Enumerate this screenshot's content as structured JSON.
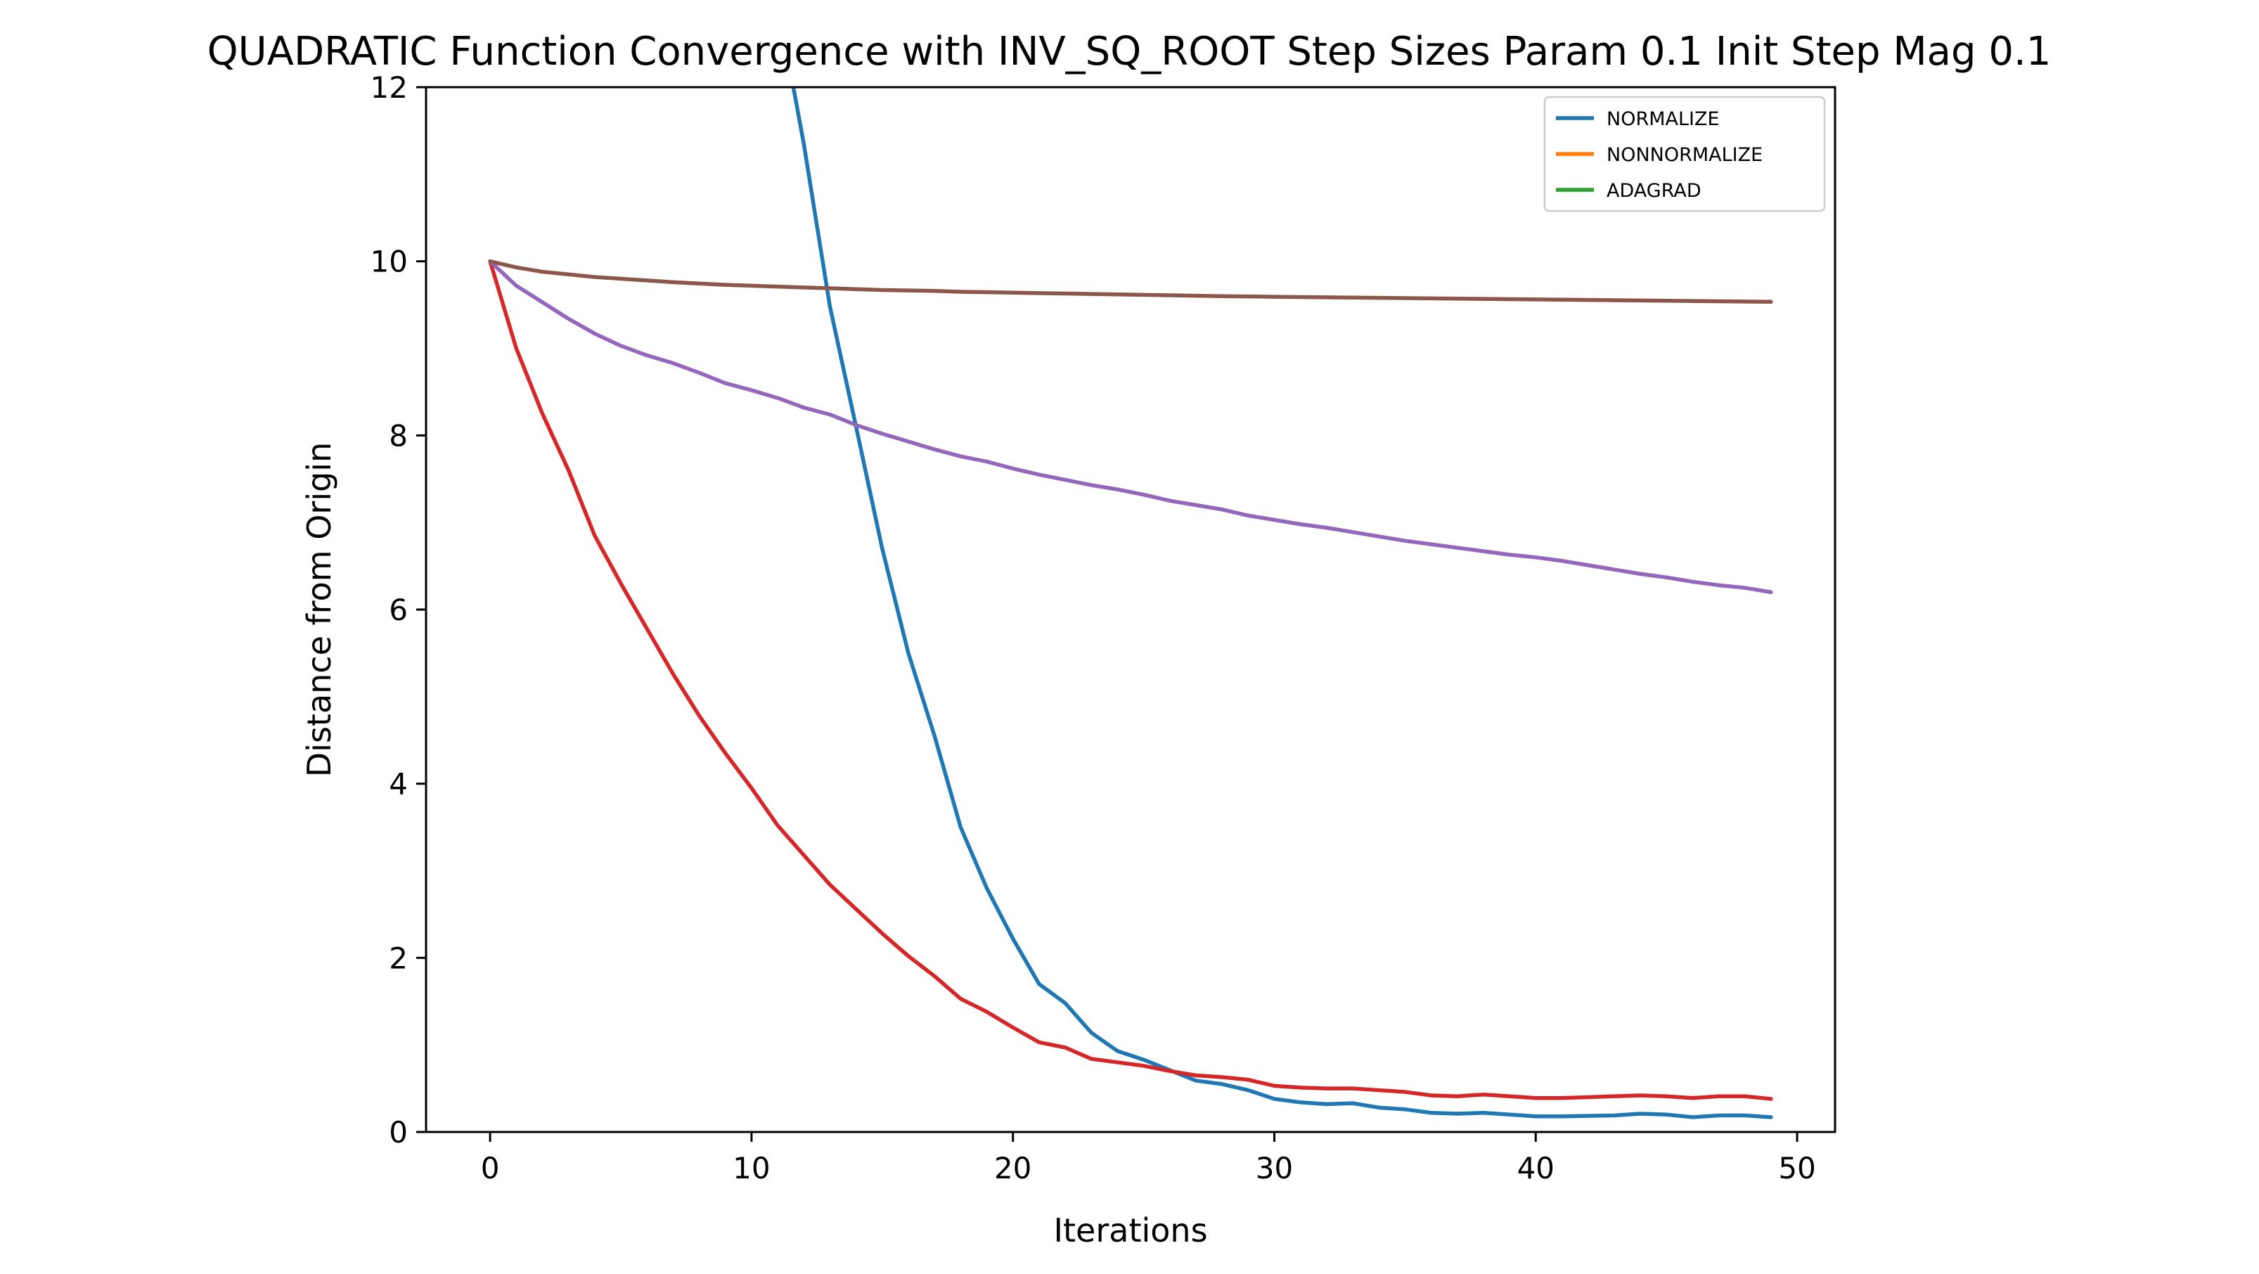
{
  "chart_data": {
    "type": "line",
    "title": "QUADRATIC Function Convergence with INV_SQ_ROOT Step Sizes Param 0.1 Init Step Mag 0.1",
    "xlabel": "Iterations",
    "ylabel": "Distance from Origin",
    "xlim": [
      -2.45,
      51.45
    ],
    "ylim": [
      0,
      12
    ],
    "xticks": [
      0,
      10,
      20,
      30,
      40,
      50
    ],
    "yticks": [
      0,
      2,
      4,
      6,
      8,
      10,
      12
    ],
    "grid": false,
    "legend_position": "top-right",
    "legend": [
      {
        "label": "NORMALIZE",
        "color": "#1f77b4"
      },
      {
        "label": "NONNORMALIZE",
        "color": "#ff7f0e"
      },
      {
        "label": "ADAGRAD",
        "color": "#2ca02c"
      }
    ],
    "series": [
      {
        "color": "#1f77b4",
        "x": [
          11.6,
          12,
          13,
          14,
          15,
          16,
          17,
          18,
          19,
          20,
          21,
          22,
          23,
          24,
          25,
          26,
          27,
          28,
          29,
          30,
          31,
          32,
          33,
          34,
          35,
          36,
          37,
          38,
          39,
          40,
          41,
          42,
          43,
          44,
          45,
          46,
          47,
          48,
          49
        ],
        "values": [
          12,
          11.35,
          9.48,
          8.1,
          6.7,
          5.5,
          4.55,
          3.5,
          2.8,
          2.22,
          1.7,
          1.48,
          1.14,
          0.93,
          0.83,
          0.71,
          0.59,
          0.55,
          0.48,
          0.38,
          0.34,
          0.32,
          0.33,
          0.28,
          0.26,
          0.22,
          0.21,
          0.22,
          0.2,
          0.18,
          0.18,
          0.185,
          0.19,
          0.21,
          0.2,
          0.17,
          0.19,
          0.19,
          0.17
        ]
      },
      {
        "color": "#d62728",
        "x": [
          0,
          1,
          2,
          3,
          4,
          5,
          6,
          7,
          8,
          9,
          10,
          11,
          12,
          13,
          14,
          15,
          16,
          17,
          18,
          19,
          20,
          21,
          22,
          23,
          24,
          25,
          26,
          27,
          28,
          29,
          30,
          31,
          32,
          33,
          34,
          35,
          36,
          37,
          38,
          39,
          40,
          41,
          42,
          43,
          44,
          45,
          46,
          47,
          48,
          49
        ],
        "values": [
          10,
          9.0,
          8.25,
          7.6,
          6.85,
          6.3,
          5.78,
          5.26,
          4.78,
          4.35,
          3.95,
          3.52,
          3.18,
          2.84,
          2.56,
          2.28,
          2.02,
          1.79,
          1.53,
          1.38,
          1.2,
          1.03,
          0.97,
          0.84,
          0.8,
          0.76,
          0.7,
          0.65,
          0.63,
          0.6,
          0.53,
          0.51,
          0.5,
          0.5,
          0.48,
          0.46,
          0.42,
          0.41,
          0.43,
          0.41,
          0.39,
          0.39,
          0.4,
          0.41,
          0.42,
          0.41,
          0.39,
          0.41,
          0.41,
          0.38
        ]
      },
      {
        "color": "#9467bd",
        "x": [
          0,
          1,
          2,
          3,
          4,
          5,
          6,
          7,
          8,
          9,
          10,
          11,
          12,
          13,
          14,
          15,
          16,
          17,
          18,
          19,
          20,
          21,
          22,
          23,
          24,
          25,
          26,
          27,
          28,
          29,
          30,
          31,
          32,
          33,
          34,
          35,
          36,
          37,
          38,
          39,
          40,
          41,
          42,
          43,
          44,
          45,
          46,
          47,
          48,
          49
        ],
        "values": [
          10,
          9.72,
          9.53,
          9.34,
          9.17,
          9.03,
          8.92,
          8.83,
          8.72,
          8.6,
          8.52,
          8.43,
          8.32,
          8.24,
          8.12,
          8.02,
          7.93,
          7.84,
          7.76,
          7.7,
          7.62,
          7.55,
          7.49,
          7.43,
          7.38,
          7.32,
          7.25,
          7.2,
          7.15,
          7.08,
          7.03,
          6.98,
          6.94,
          6.89,
          6.84,
          6.79,
          6.75,
          6.71,
          6.67,
          6.63,
          6.6,
          6.56,
          6.51,
          6.46,
          6.41,
          6.37,
          6.32,
          6.28,
          6.25,
          6.2
        ]
      },
      {
        "color": "#8c564b",
        "x": [
          0,
          1,
          2,
          3,
          4,
          5,
          6,
          7,
          8,
          9,
          10,
          11,
          12,
          13,
          14,
          15,
          16,
          17,
          18,
          19,
          20,
          21,
          22,
          23,
          24,
          25,
          26,
          27,
          28,
          29,
          30,
          31,
          32,
          33,
          34,
          35,
          36,
          37,
          38,
          39,
          40,
          41,
          42,
          43,
          44,
          45,
          46,
          47,
          48,
          49
        ],
        "values": [
          10,
          9.93,
          9.88,
          9.85,
          9.82,
          9.8,
          9.78,
          9.76,
          9.745,
          9.73,
          9.72,
          9.71,
          9.7,
          9.69,
          9.68,
          9.67,
          9.665,
          9.66,
          9.65,
          9.645,
          9.64,
          9.635,
          9.63,
          9.625,
          9.62,
          9.615,
          9.61,
          9.605,
          9.6,
          9.597,
          9.593,
          9.59,
          9.586,
          9.583,
          9.58,
          9.577,
          9.574,
          9.571,
          9.568,
          9.565,
          9.562,
          9.559,
          9.556,
          9.553,
          9.55,
          9.547,
          9.544,
          9.541,
          9.538,
          9.535
        ]
      }
    ]
  }
}
